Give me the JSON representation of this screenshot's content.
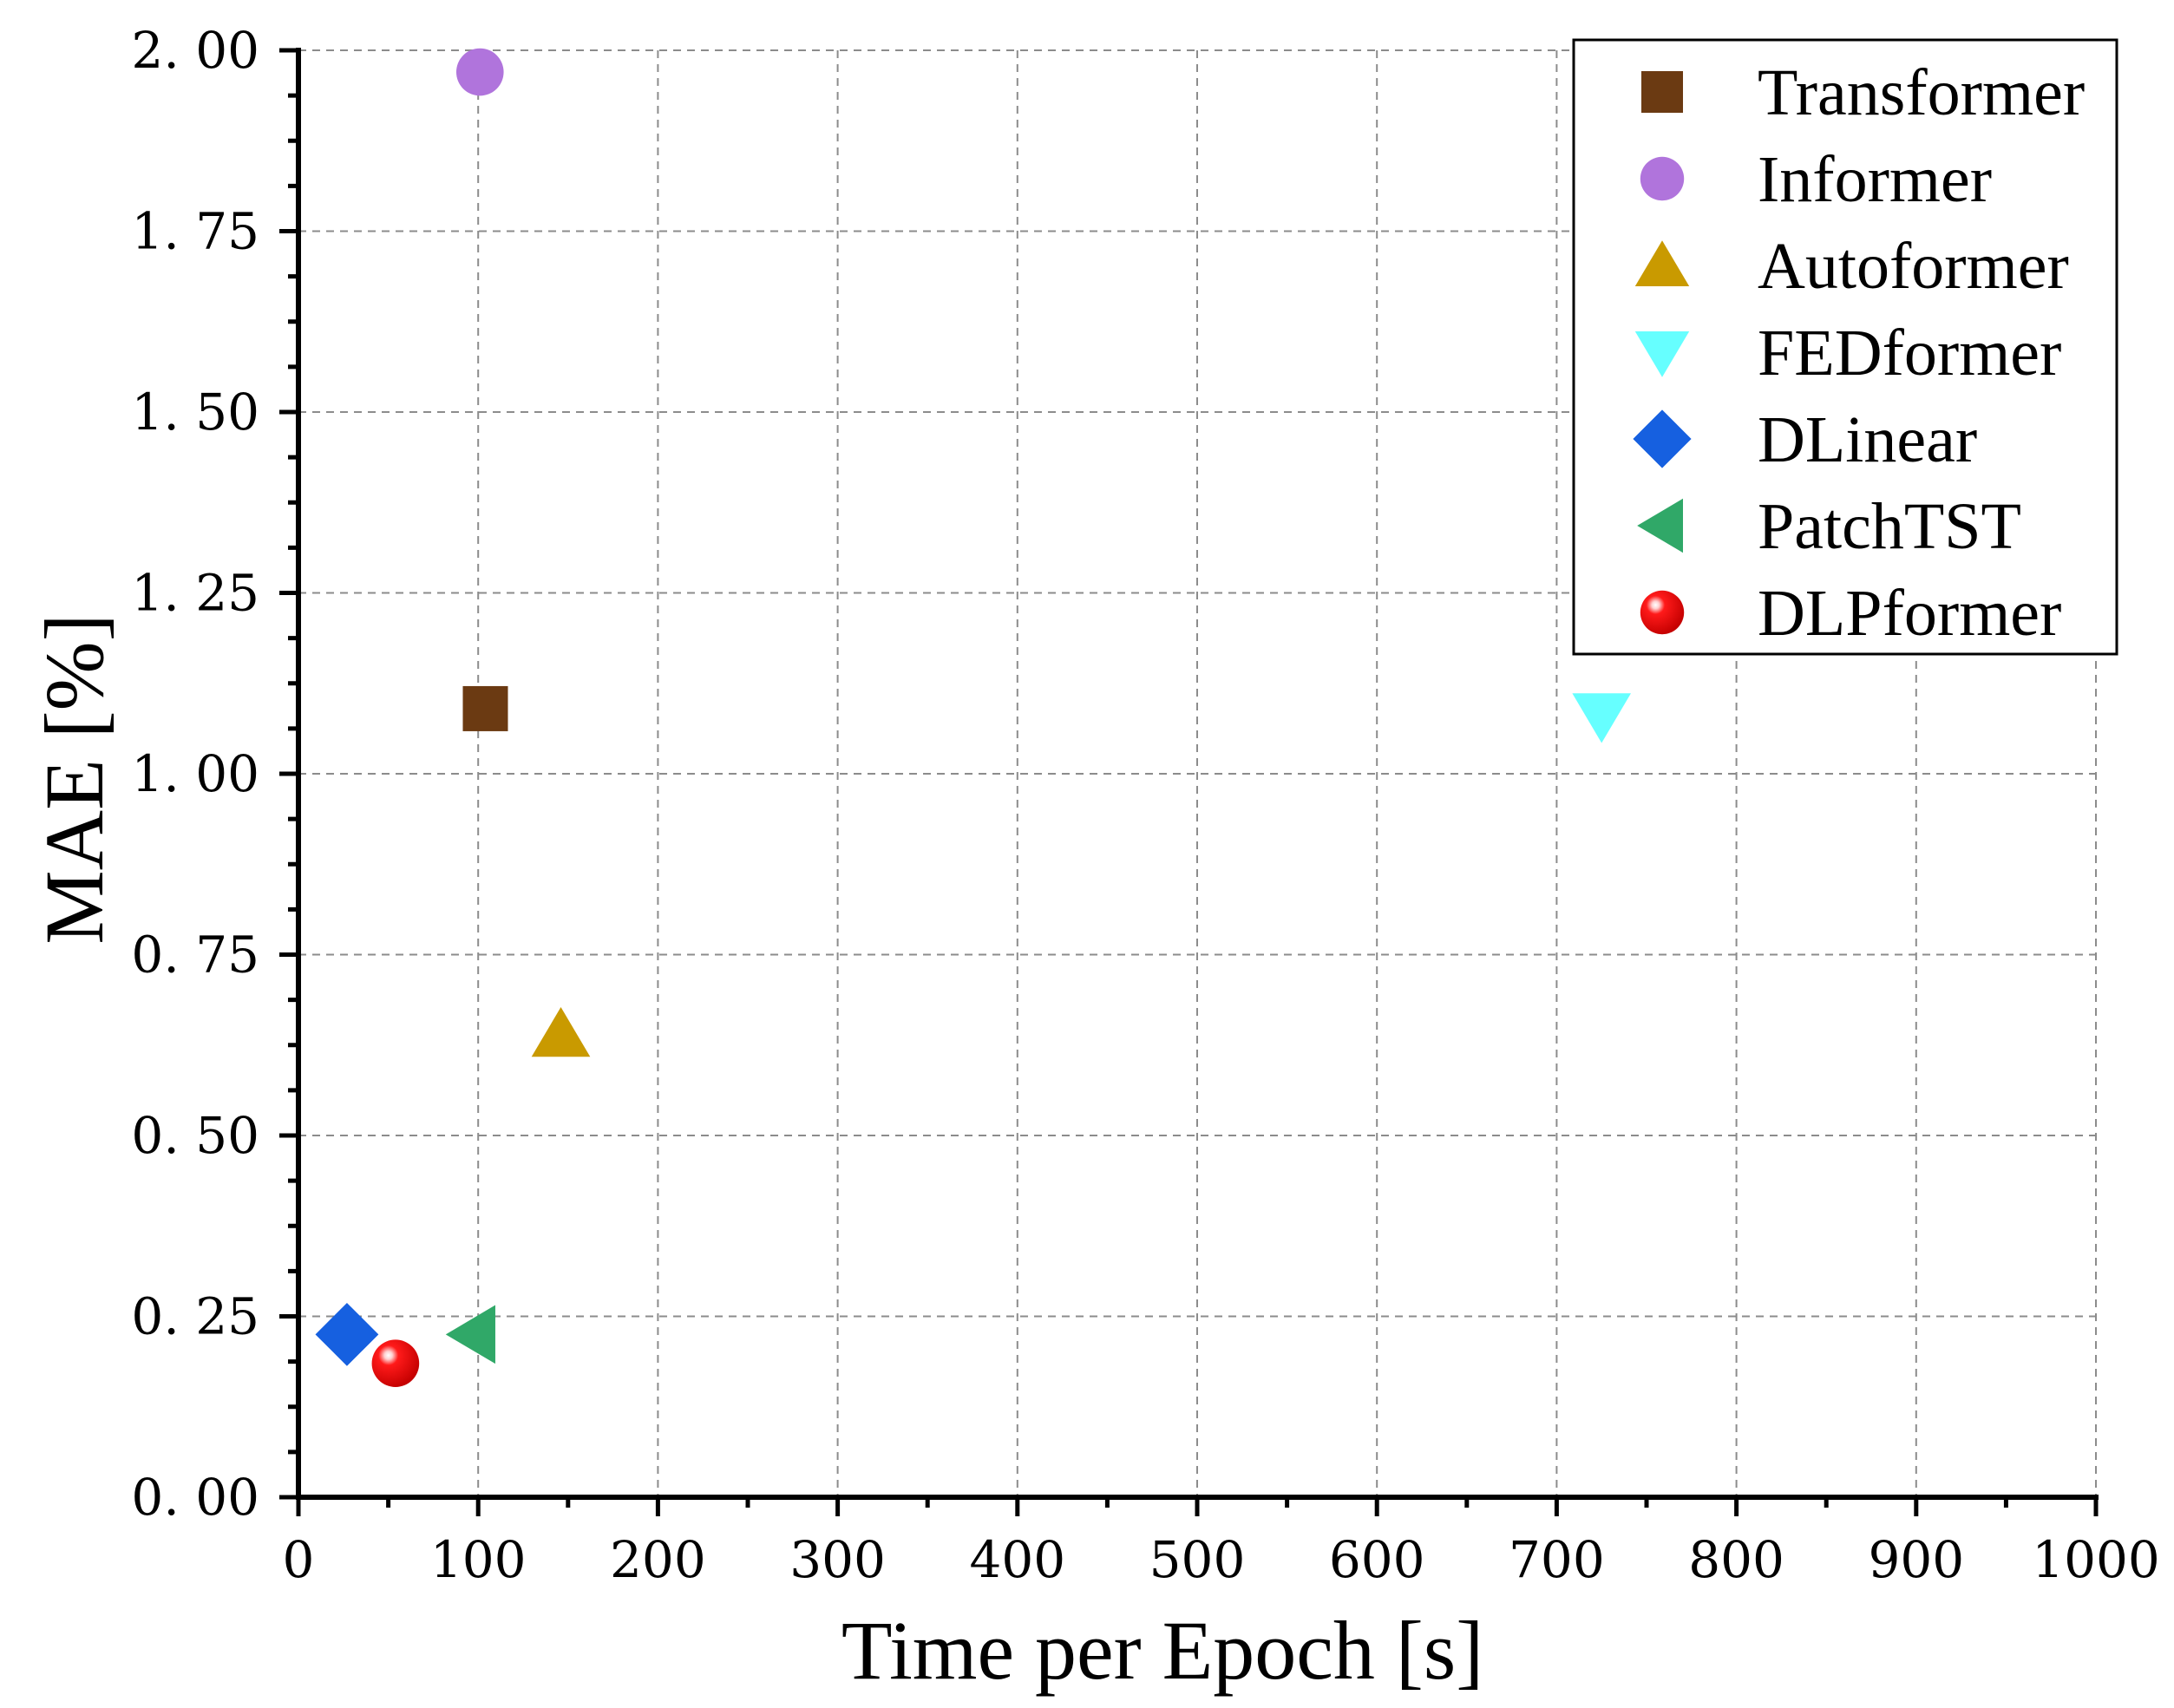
{
  "chart_data": {
    "type": "scatter",
    "title": "",
    "xlabel": "Time per Epoch [s]",
    "ylabel": "MAE [%]",
    "xlim": [
      0,
      1000
    ],
    "ylim": [
      0,
      2.0
    ],
    "x_ticks": [
      0,
      100,
      200,
      300,
      400,
      500,
      600,
      700,
      800,
      900,
      1000
    ],
    "x_tick_labels": [
      "0",
      "100",
      "200",
      "300",
      "400",
      "500",
      "600",
      "700",
      "800",
      "900",
      "1000"
    ],
    "y_ticks": [
      0,
      0.25,
      0.5,
      0.75,
      1.0,
      1.25,
      1.5,
      1.75,
      2.0
    ],
    "y_tick_labels": [
      "0. 00",
      "0. 25",
      "0. 50",
      "0. 75",
      "1. 00",
      "1. 25",
      "1. 50",
      "1. 75",
      "2. 00"
    ],
    "grid": true,
    "legend_position": "top-right",
    "series": [
      {
        "name": "Transformer",
        "marker": "square",
        "color": "#6b3a12",
        "x": 104,
        "y": 1.09
      },
      {
        "name": "Informer",
        "marker": "circle",
        "color": "#b074dc",
        "x": 101,
        "y": 1.97
      },
      {
        "name": "Autoformer",
        "marker": "triangle-up",
        "color": "#c99a00",
        "x": 146,
        "y": 0.64
      },
      {
        "name": "FEDformer",
        "marker": "triangle-down",
        "color": "#66ffff",
        "x": 725,
        "y": 1.08
      },
      {
        "name": "DLinear",
        "marker": "diamond",
        "color": "#1660e0",
        "x": 27,
        "y": 0.225
      },
      {
        "name": "PatchTST",
        "marker": "triangle-left",
        "color": "#30a868",
        "x": 97,
        "y": 0.225
      },
      {
        "name": "DLPformer",
        "marker": "sphere",
        "color": "#ee0000",
        "x": 54,
        "y": 0.185
      }
    ]
  }
}
